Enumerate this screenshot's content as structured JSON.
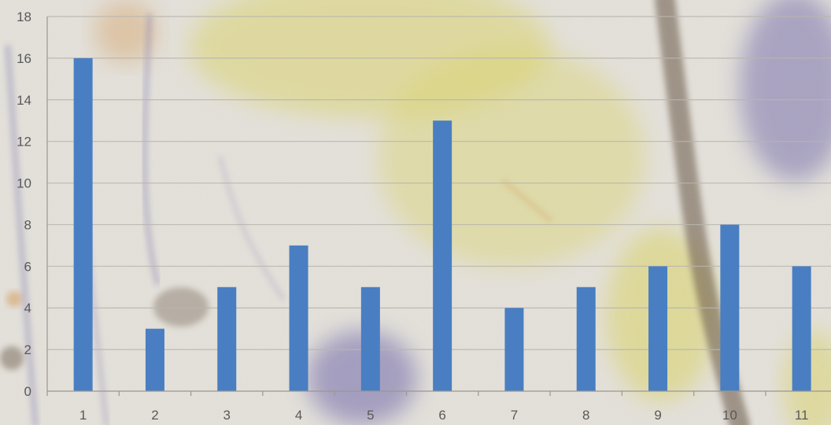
{
  "chart_data": {
    "type": "bar",
    "categories": [
      "1",
      "2",
      "3",
      "4",
      "5",
      "6",
      "7",
      "8",
      "9",
      "10",
      "11"
    ],
    "values": [
      16,
      3,
      5,
      7,
      5,
      13,
      4,
      5,
      6,
      8,
      6
    ],
    "title": "",
    "xlabel": "",
    "ylabel": "",
    "ylim": [
      0,
      18
    ],
    "yticks": [
      "0",
      "2",
      "4",
      "6",
      "8",
      "10",
      "12",
      "14",
      "16",
      "18"
    ],
    "grid": true,
    "legend": "none",
    "bar_color": "#4a7ec2"
  },
  "colors": {
    "background": "#e6e3dc",
    "gridline": "#b9b6ae",
    "axis": "#9a978f",
    "tick_label": "#595959",
    "paint_yellow": "#ddd66a",
    "paint_purple": "#6b62a8",
    "paint_brown": "#5e4c37",
    "paint_orange": "#d69a52"
  }
}
